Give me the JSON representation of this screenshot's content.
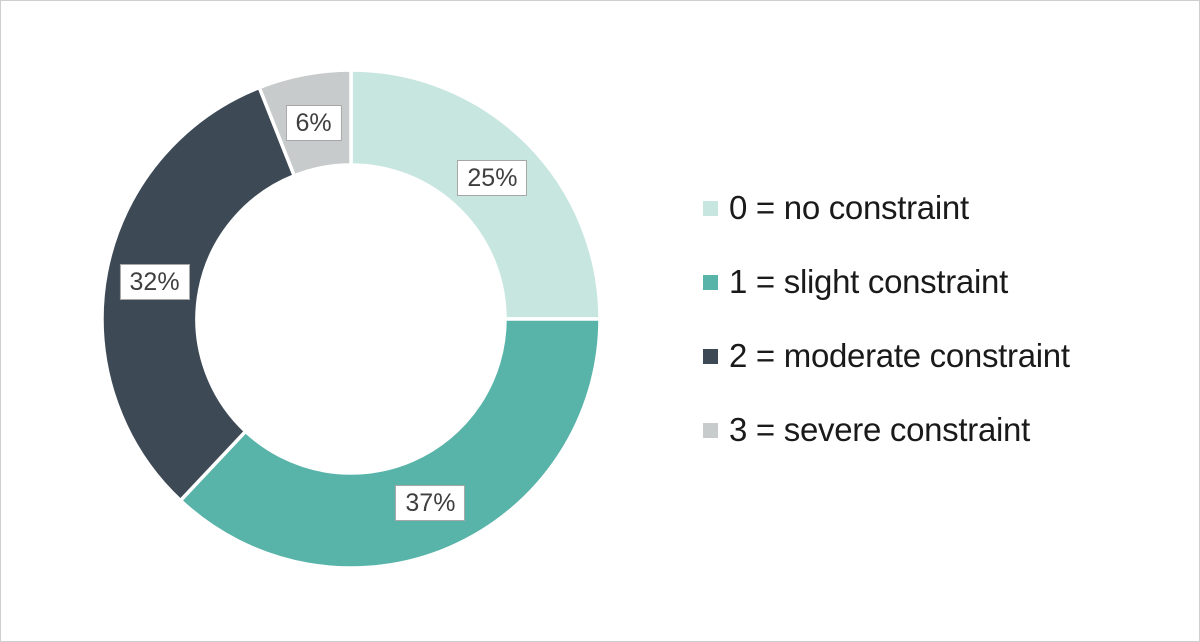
{
  "page": {
    "background_color": "#ffffff",
    "border_color": "#cfcfcf"
  },
  "chart_data": {
    "type": "pie",
    "subtype": "donut",
    "title": "",
    "direction": "clockwise",
    "start_angle_deg": 0,
    "inner_radius_ratio": 0.62,
    "legend_position": "right",
    "data_labels_style": "boxed percent labels outside-center of slices",
    "label_text_color": "#3f3f3f",
    "label_box_border_color": "#a6a6a6",
    "label_box_fill": "#ffffff",
    "legend_text_color": "#1a1a1a",
    "slice_gap_color": "#ffffff",
    "slices": [
      {
        "label": "0 = no constraint",
        "value": 25,
        "percent_label": "25%",
        "color": "#c8e6e0"
      },
      {
        "label": "1 = slight constraint",
        "value": 37,
        "percent_label": "37%",
        "color": "#58b3a9"
      },
      {
        "label": "2 = moderate constraint",
        "value": 32,
        "percent_label": "32%",
        "color": "#3d4a56"
      },
      {
        "label": "3 = severe constraint",
        "value": 6,
        "percent_label": "6%",
        "color": "#c8cbcb"
      }
    ]
  }
}
